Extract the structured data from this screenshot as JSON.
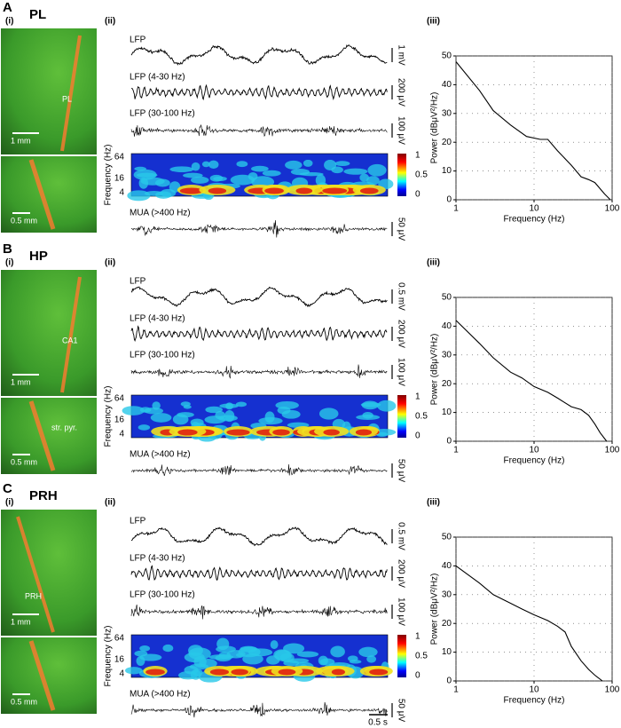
{
  "panels": [
    {
      "letter": "A",
      "region": "PL",
      "subpanels": [
        "(i)",
        "(ii)",
        "(iii)"
      ],
      "histology": {
        "labels": [
          "PL"
        ],
        "scale_bars": [
          "1 mm",
          "0.5 mm"
        ]
      },
      "traces": [
        {
          "label": "LFP",
          "scale": "1 mV"
        },
        {
          "label": "LFP (4-30 Hz)",
          "scale": "200 μV"
        },
        {
          "label": "LFP (30-100 Hz)",
          "scale": "100 μV"
        },
        {
          "label": "MUA (>400 Hz)",
          "scale": "50 μV"
        }
      ],
      "spectrogram": {
        "ylabel": "Frequency (Hz)",
        "yticks": [
          64,
          16,
          4
        ],
        "colorbar_ticks": [
          1,
          0.5,
          0
        ]
      },
      "spectrum": {
        "type": "line",
        "xlabel": "Frequency (Hz)",
        "ylabel": "Power (dBμV²/Hz)",
        "log_x": true,
        "grid": true,
        "color": "#000000",
        "xlim": [
          1,
          100
        ],
        "xticks": [
          1,
          10,
          100
        ],
        "ylim": [
          0,
          50
        ],
        "yticks": [
          0,
          10,
          20,
          30,
          40,
          50
        ],
        "x": [
          1,
          2,
          3,
          5,
          8,
          12,
          15,
          20,
          30,
          40,
          50,
          60,
          80,
          95
        ],
        "values": [
          48,
          38,
          31,
          26,
          22,
          21,
          21,
          17,
          12,
          8,
          7,
          6,
          2,
          0
        ]
      }
    },
    {
      "letter": "B",
      "region": "HP",
      "subpanels": [
        "(i)",
        "(ii)",
        "(iii)"
      ],
      "histology": {
        "labels": [
          "CA1",
          "str. pyr."
        ],
        "scale_bars": [
          "1 mm",
          "0.5 mm"
        ]
      },
      "traces": [
        {
          "label": "LFP",
          "scale": "0.5 mV"
        },
        {
          "label": "LFP (4-30 Hz)",
          "scale": "200 μV"
        },
        {
          "label": "LFP (30-100 Hz)",
          "scale": "100 μV"
        },
        {
          "label": "MUA (>400 Hz)",
          "scale": "50 μV"
        }
      ],
      "spectrogram": {
        "ylabel": "Frequency (Hz)",
        "yticks": [
          64,
          16,
          4
        ],
        "colorbar_ticks": [
          1,
          0.5,
          0
        ]
      },
      "spectrum": {
        "type": "line",
        "xlabel": "Frequency (Hz)",
        "ylabel": "Power (dBμV²/Hz)",
        "log_x": true,
        "grid": true,
        "color": "#000000",
        "xlim": [
          1,
          100
        ],
        "xticks": [
          1,
          10,
          100
        ],
        "ylim": [
          0,
          50
        ],
        "yticks": [
          0,
          10,
          20,
          30,
          40,
          50
        ],
        "x": [
          1,
          2,
          3,
          5,
          7,
          10,
          15,
          20,
          30,
          40,
          50,
          60,
          70,
          85
        ],
        "values": [
          42,
          34,
          29,
          24,
          22,
          19,
          17,
          15,
          12,
          11,
          9,
          6,
          3,
          0
        ]
      }
    },
    {
      "letter": "C",
      "region": "PRH",
      "subpanels": [
        "(i)",
        "(ii)",
        "(iii)"
      ],
      "histology": {
        "labels": [
          "PRH"
        ],
        "scale_bars": [
          "1 mm",
          "0.5 mm"
        ]
      },
      "traces": [
        {
          "label": "LFP",
          "scale": "0.5 mV"
        },
        {
          "label": "LFP (4-30 Hz)",
          "scale": "200 μV"
        },
        {
          "label": "LFP (30-100 Hz)",
          "scale": "100 μV"
        },
        {
          "label": "MUA (>400 Hz)",
          "scale": "50 μV"
        }
      ],
      "spectrogram": {
        "ylabel": "Frequency (Hz)",
        "yticks": [
          64,
          16,
          4
        ],
        "colorbar_ticks": [
          1,
          0.5,
          0
        ]
      },
      "spectrum": {
        "type": "line",
        "xlabel": "Frequency (Hz)",
        "ylabel": "Power (dBμV²/Hz)",
        "log_x": true,
        "grid": true,
        "color": "#000000",
        "xlim": [
          1,
          100
        ],
        "xticks": [
          1,
          10,
          100
        ],
        "ylim": [
          0,
          50
        ],
        "yticks": [
          0,
          10,
          20,
          30,
          40,
          50
        ],
        "x": [
          1,
          2,
          3,
          5,
          7,
          10,
          15,
          20,
          25,
          30,
          40,
          50,
          60,
          75
        ],
        "values": [
          40,
          34,
          30,
          27,
          25,
          23,
          21,
          19,
          17,
          12,
          7,
          4,
          2,
          0
        ]
      }
    }
  ],
  "time_scale": "0.5 s"
}
